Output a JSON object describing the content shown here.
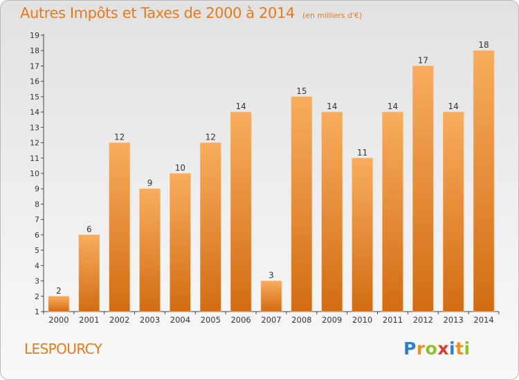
{
  "title": "Autres Impôts et Taxes de 2000 à 2014",
  "unit_note": "(en milliers d'€)",
  "place": "LESPOURCY",
  "logo": {
    "letters": [
      "P",
      "r",
      "o",
      "x",
      "i",
      "t",
      "i"
    ],
    "colors": [
      "#2f7fd1",
      "#e8922a",
      "#8fbf2f",
      "#d83a2c",
      "#2f7fd1",
      "#e8922a",
      "#8fbf2f"
    ]
  },
  "colors": {
    "bar_light": "#f8ad5e",
    "bar_dark": "#d26c13",
    "accent": "#e07c1f"
  },
  "chart_data": {
    "type": "bar",
    "title": "Autres Impôts et Taxes de 2000 à 2014",
    "categories": [
      "2000",
      "2001",
      "2002",
      "2003",
      "2004",
      "2005",
      "2006",
      "2007",
      "2008",
      "2009",
      "2010",
      "2011",
      "2012",
      "2013",
      "2014"
    ],
    "values": [
      2,
      6,
      12,
      9,
      10,
      12,
      14,
      3,
      15,
      14,
      11,
      14,
      17,
      14,
      18
    ],
    "ylim": [
      1,
      19
    ],
    "yticks": [
      1,
      2,
      3,
      4,
      5,
      6,
      7,
      8,
      9,
      10,
      11,
      12,
      13,
      14,
      15,
      16,
      17,
      18,
      19
    ],
    "xlabel": "",
    "ylabel": "",
    "grid": false,
    "legend": "none"
  }
}
